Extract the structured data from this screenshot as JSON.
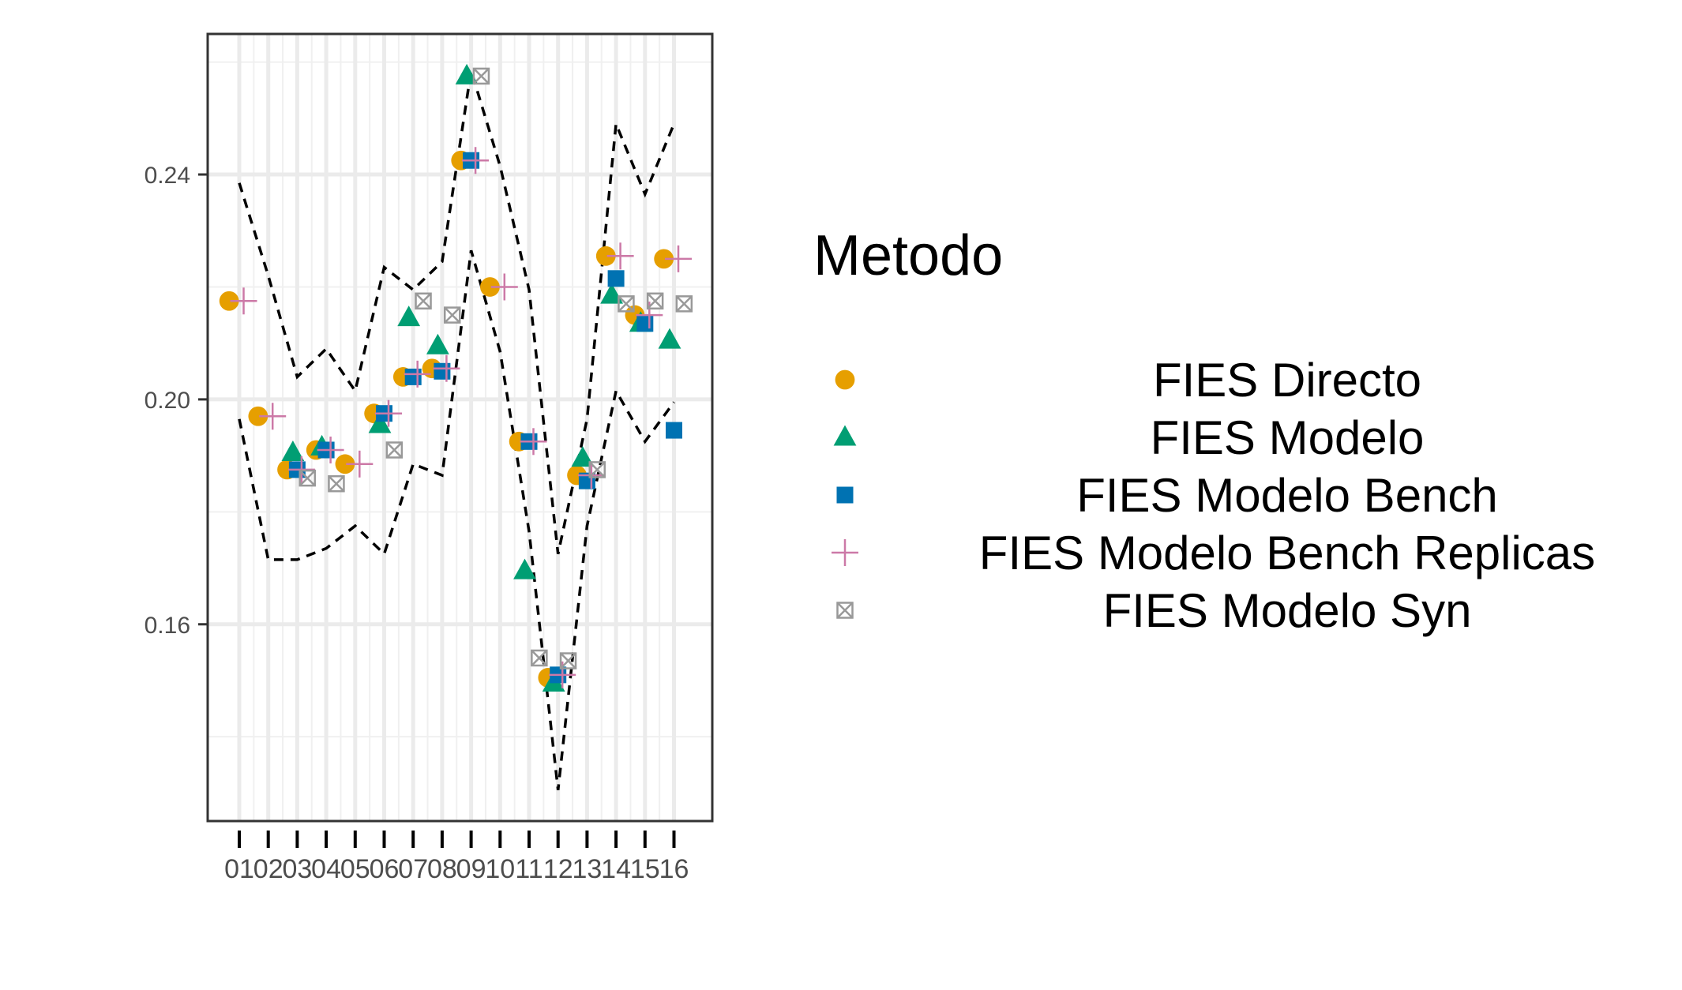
{
  "chart_data": {
    "type": "scatter",
    "title": "",
    "xlabel": "",
    "ylabel": "",
    "categories": [
      "01",
      "02",
      "03",
      "04",
      "05",
      "06",
      "07",
      "08",
      "09",
      "10",
      "11",
      "12",
      "13",
      "14",
      "15",
      "16"
    ],
    "ylim": [
      0.125,
      0.265
    ],
    "yticks": [
      0.16,
      0.2,
      0.24
    ],
    "ytick_labels": [
      "0.16",
      "0.20",
      "0.24"
    ],
    "grid": true,
    "legend": {
      "title": "Metodo",
      "position": "right"
    },
    "series": [
      {
        "name": "FIES Directo",
        "shape": "circle",
        "color": "#E69F00",
        "offset": -0.35,
        "values": [
          0.2175,
          0.197,
          0.1875,
          0.191,
          0.1885,
          0.1975,
          0.204,
          0.2055,
          0.2425,
          0.22,
          0.1925,
          0.1505,
          0.1865,
          0.2255,
          0.215,
          0.225
        ]
      },
      {
        "name": "FIES Modelo",
        "shape": "triangle",
        "color": "#009E73",
        "offset": -0.15,
        "values": [
          null,
          null,
          0.1905,
          0.1915,
          null,
          0.1955,
          0.2145,
          0.2095,
          0.2575,
          null,
          0.1695,
          0.1495,
          0.1895,
          0.2185,
          0.2135,
          0.2105
        ]
      },
      {
        "name": "FIES Modelo Bench",
        "shape": "square",
        "color": "#0072B2",
        "offset": 0.0,
        "values": [
          null,
          null,
          0.1875,
          0.191,
          null,
          0.1975,
          0.204,
          0.205,
          0.2425,
          null,
          0.1925,
          0.151,
          0.1855,
          0.2215,
          0.2135,
          0.1945
        ]
      },
      {
        "name": "FIES Modelo Bench Replicas",
        "shape": "plus",
        "color": "#CC79A7",
        "offset": 0.15,
        "values": [
          0.2175,
          0.197,
          0.1875,
          0.191,
          0.1885,
          0.1975,
          0.2045,
          0.2055,
          0.2425,
          0.22,
          0.1925,
          0.151,
          0.1865,
          0.2255,
          0.215,
          0.225
        ]
      },
      {
        "name": "FIES Modelo Syn",
        "shape": "square-x",
        "color": "#999999",
        "offset": 0.35,
        "values": [
          null,
          null,
          0.186,
          0.185,
          null,
          0.191,
          0.2175,
          0.215,
          0.2575,
          null,
          0.154,
          0.1535,
          0.1875,
          0.217,
          0.2175,
          0.217
        ]
      }
    ],
    "bounds": {
      "style": "dashed",
      "color": "#000000",
      "upper": [
        0.2385,
        0.222,
        0.204,
        0.209,
        0.2015,
        0.2235,
        0.2195,
        0.2245,
        0.2585,
        0.2415,
        0.2195,
        0.1725,
        0.1965,
        0.249,
        0.2365,
        0.249
      ],
      "lower": [
        0.1965,
        0.1715,
        0.1715,
        0.1735,
        0.1775,
        0.1725,
        0.1885,
        0.1865,
        0.2265,
        0.2085,
        0.1765,
        0.1305,
        0.1775,
        0.2015,
        0.1925,
        0.1995
      ]
    }
  }
}
